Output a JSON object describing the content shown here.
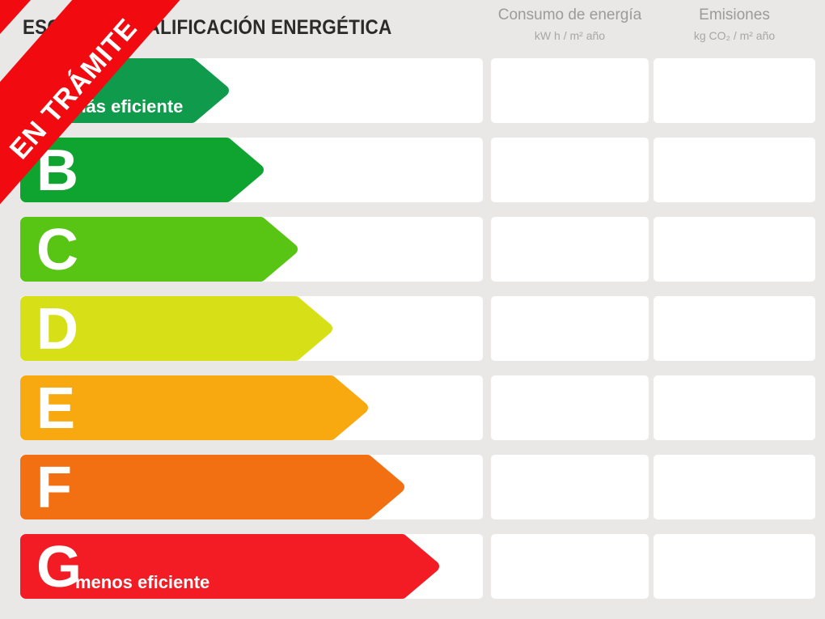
{
  "ribbon": {
    "label": "EN TRÁMITE",
    "color": "#f10a10"
  },
  "header": {
    "title": "ESCALA DE CALIFICACIÓN ENERGÉTICA",
    "columns": [
      {
        "label": "Consumo de energía",
        "units": "kW h / m² año"
      },
      {
        "label": "Emisiones",
        "units": "kg CO₂ / m² año"
      }
    ]
  },
  "scale": {
    "rows": [
      {
        "grade": "A",
        "color": "#0f9a4c",
        "arrow_width": 258,
        "note": "más eficiente",
        "consumo": "",
        "emisiones": ""
      },
      {
        "grade": "B",
        "color": "#0fa32f",
        "arrow_width": 301,
        "note": "",
        "consumo": "",
        "emisiones": ""
      },
      {
        "grade": "C",
        "color": "#58c413",
        "arrow_width": 343,
        "note": "",
        "consumo": "",
        "emisiones": ""
      },
      {
        "grade": "D",
        "color": "#d7df17",
        "arrow_width": 386,
        "note": "",
        "consumo": "",
        "emisiones": ""
      },
      {
        "grade": "E",
        "color": "#f8a90f",
        "arrow_width": 430,
        "note": "",
        "consumo": "",
        "emisiones": ""
      },
      {
        "grade": "F",
        "color": "#f37012",
        "arrow_width": 475,
        "note": "",
        "consumo": "",
        "emisiones": ""
      },
      {
        "grade": "G",
        "color": "#f41c24",
        "arrow_width": 518,
        "note": "menos eficiente",
        "consumo": "",
        "emisiones": ""
      }
    ]
  },
  "chart_data": {
    "type": "bar",
    "orientation": "horizontal",
    "title": "ESCALA DE CALIFICACIÓN ENERGÉTICA",
    "categories": [
      "A",
      "B",
      "C",
      "D",
      "E",
      "F",
      "G"
    ],
    "values": [
      258,
      301,
      343,
      386,
      430,
      475,
      518
    ],
    "value_unit": "arrow length in px (ordinal rating scale, no numeric axis shown)",
    "colors": [
      "#0f9a4c",
      "#0fa32f",
      "#58c413",
      "#d7df17",
      "#f8a90f",
      "#f37012",
      "#f41c24"
    ],
    "annotations": [
      "más eficiente (top, A)",
      "menos eficiente (bottom, G)",
      "EN TRÁMITE (ribbon)"
    ],
    "columns": [
      {
        "header": "Consumo de energía",
        "units": "kW h / m² año",
        "values": [
          "",
          "",
          "",
          "",
          "",
          "",
          ""
        ]
      },
      {
        "header": "Emisiones",
        "units": "kg CO₂ / m² año",
        "values": [
          "",
          "",
          "",
          "",
          "",
          "",
          ""
        ]
      }
    ],
    "legend": false,
    "grid": false
  }
}
